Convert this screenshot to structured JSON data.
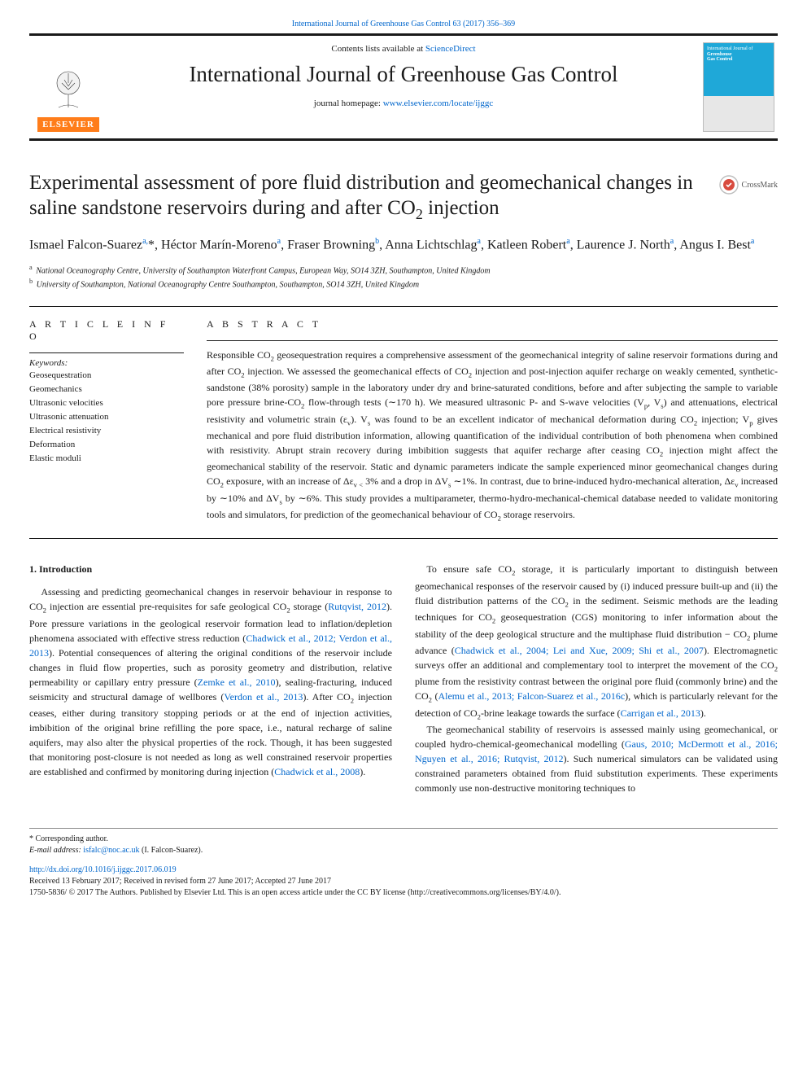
{
  "colors": {
    "link": "#0066cc",
    "elsevier_orange": "#ff7d1a",
    "rule": "#1a1a1a",
    "cover_blue": "#1fa8d8"
  },
  "top_line": "International Journal of Greenhouse Gas Control 63 (2017) 356–369",
  "masthead": {
    "contents_prefix": "Contents lists available at ",
    "contents_link": "ScienceDirect",
    "journal_name": "International Journal of Greenhouse Gas Control",
    "homepage_prefix": "journal homepage: ",
    "homepage_link": "www.elsevier.com/locate/ijggc",
    "elsevier": "ELSEVIER",
    "cover_caption_line1": "International Journal of",
    "cover_caption_line2": "Greenhouse",
    "cover_caption_line3": "Gas Control"
  },
  "crossmark_label": "CrossMark",
  "article_title_html": "Experimental assessment of pore fluid distribution and geomechanical changes in saline sandstone reservoirs during and after CO<sub>2</sub> injection",
  "authors_html": "Ismael Falcon-Suarez<sup>a,</sup>*, Héctor Marín-Moreno<sup>a</sup>, Fraser Browning<sup>b</sup>, Anna Lichtschlag<sup>a</sup>, Katleen Robert<sup>a</sup>, Laurence J. North<sup>a</sup>, Angus I. Best<sup>a</sup>",
  "affiliations": {
    "a": "National Oceanography Centre, University of Southampton Waterfront Campus, European Way, SO14 3ZH, Southampton, United Kingdom",
    "b": "University of Southampton, National Oceanography Centre Southampton, Southampton, SO14 3ZH, United Kingdom"
  },
  "article_info": {
    "heading": "A R T I C L E  I N F O",
    "keywords_label": "Keywords:",
    "keywords": [
      "Geosequestration",
      "Geomechanics",
      "Ultrasonic velocities",
      "Ultrasonic attenuation",
      "Electrical resistivity",
      "Deformation",
      "Elastic moduli"
    ]
  },
  "abstract": {
    "heading": "A B S T R A C T",
    "text_html": "Responsible CO<sub>2</sub> geosequestration requires a comprehensive assessment of the geomechanical integrity of saline reservoir formations during and after CO<sub>2</sub> injection. We assessed the geomechanical effects of CO<sub>2</sub> injection and post-injection aquifer recharge on weakly cemented, synthetic-sandstone (38% porosity) sample in the laboratory under dry and brine-saturated conditions, before and after subjecting the sample to variable pore pressure brine-CO<sub>2</sub> flow-through tests (∼170 h). We measured ultrasonic P- and S-wave velocities (V<sub>p</sub>, V<sub>s</sub>) and attenuations, electrical resistivity and volumetric strain (ε<sub>v</sub>). V<sub>s</sub> was found to be an excellent indicator of mechanical deformation during CO<sub>2</sub> injection; V<sub>p</sub> gives mechanical and pore fluid distribution information, allowing quantification of the individual contribution of both phenomena when combined with resistivity. Abrupt strain recovery during imbibition suggests that aquifer recharge after ceasing CO<sub>2</sub> injection might affect the geomechanical stability of the reservoir. Static and dynamic parameters indicate the sample experienced minor geomechanical changes during CO<sub>2</sub> exposure, with an increase of Δε<sub>v &lt;</sub> 3% and a drop in ΔV<sub>s</sub> ∼1%. In contrast, due to brine-induced hydro-mechanical alteration, Δε<sub>v</sub> increased by ∼10% and ΔV<sub>s</sub> by ∼6%. This study provides a multiparameter, thermo-hydro-mechanical-chemical database needed to validate monitoring tools and simulators, for prediction of the geomechanical behaviour of CO<sub>2</sub> storage reservoirs."
  },
  "body": {
    "section_head": "1. Introduction",
    "col1_html": "Assessing and predicting geomechanical changes in reservoir behaviour in response to CO<sub>2</sub> injection are essential pre-requisites for safe geological CO<sub>2</sub> storage (<a href=\"#\" data-name=\"citation-link\" data-interactable=\"true\">Rutqvist, 2012</a>). Pore pressure variations in the geological reservoir formation lead to inflation/depletion phenomena associated with effective stress reduction (<a href=\"#\" data-name=\"citation-link\" data-interactable=\"true\">Chadwick et al., 2012; Verdon et al., 2013</a>). Potential consequences of altering the original conditions of the reservoir include changes in fluid flow properties, such as porosity geometry and distribution, relative permeability or capillary entry pressure (<a href=\"#\" data-name=\"citation-link\" data-interactable=\"true\">Zemke et al., 2010</a>), sealing-fracturing, induced seismicity and structural damage of wellbores (<a href=\"#\" data-name=\"citation-link\" data-interactable=\"true\">Verdon et al., 2013</a>). After CO<sub>2</sub> injection ceases, either during transitory stopping periods or at the end of injection activities, imbibition of the original brine refilling the pore space, i.e., natural recharge of saline aquifers, may also alter the physical properties of the rock. Though, it has been suggested that monitoring post-closure is not needed as long as well constrained reservoir properties are established and confirmed by monitoring during injection (<a href=\"#\" data-name=\"citation-link\" data-interactable=\"true\">Chadwick et al., 2008</a>).",
    "col2_html": "To ensure safe CO<sub>2</sub> storage, it is particularly important to distinguish between geomechanical responses of the reservoir caused by (i) induced pressure built-up and (ii) the fluid distribution patterns of the CO<sub>2</sub> in the sediment. Seismic methods are the leading techniques for CO<sub>2</sub> geosequestration (CGS) monitoring to infer information about the stability of the deep geological structure and the multiphase fluid distribution − CO<sub>2</sub> plume advance (<a href=\"#\" data-name=\"citation-link\" data-interactable=\"true\">Chadwick et al., 2004; Lei and Xue, 2009; Shi et al., 2007</a>). Electromagnetic surveys offer an additional and complementary tool to interpret the movement of the CO<sub>2</sub> plume from the resistivity contrast between the original pore fluid (commonly brine) and the CO<sub>2</sub> (<a href=\"#\" data-name=\"citation-link\" data-interactable=\"true\">Alemu et al., 2013; Falcon-Suarez et al., 2016c</a>), which is particularly relevant for the detection of CO<sub>2</sub>-brine leakage towards the surface (<a href=\"#\" data-name=\"citation-link\" data-interactable=\"true\">Carrigan et al., 2013</a>).</p><p>The geomechanical stability of reservoirs is assessed mainly using geomechanical, or coupled hydro-chemical-geomechanical modelling (<a href=\"#\" data-name=\"citation-link\" data-interactable=\"true\">Gaus, 2010; McDermott et al., 2016; Nguyen et al., 2016; Rutqvist, 2012</a>). Such numerical simulators can be validated using constrained parameters obtained from fluid substitution experiments. These experiments commonly use non-destructive monitoring techniques to"
  },
  "footnotes": {
    "corresponding": "* Corresponding author.",
    "email_label": "E-mail address: ",
    "email": "isfalc@noc.ac.uk",
    "email_suffix": " (I. Falcon-Suarez)."
  },
  "bottom": {
    "doi": "http://dx.doi.org/10.1016/j.ijggc.2017.06.019",
    "received": "Received 13 February 2017; Received in revised form 27 June 2017; Accepted 27 June 2017",
    "license": "1750-5836/ © 2017 The Authors. Published by Elsevier Ltd. This is an open access article under the CC BY license (http://creativecommons.org/licenses/BY/4.0/)."
  }
}
